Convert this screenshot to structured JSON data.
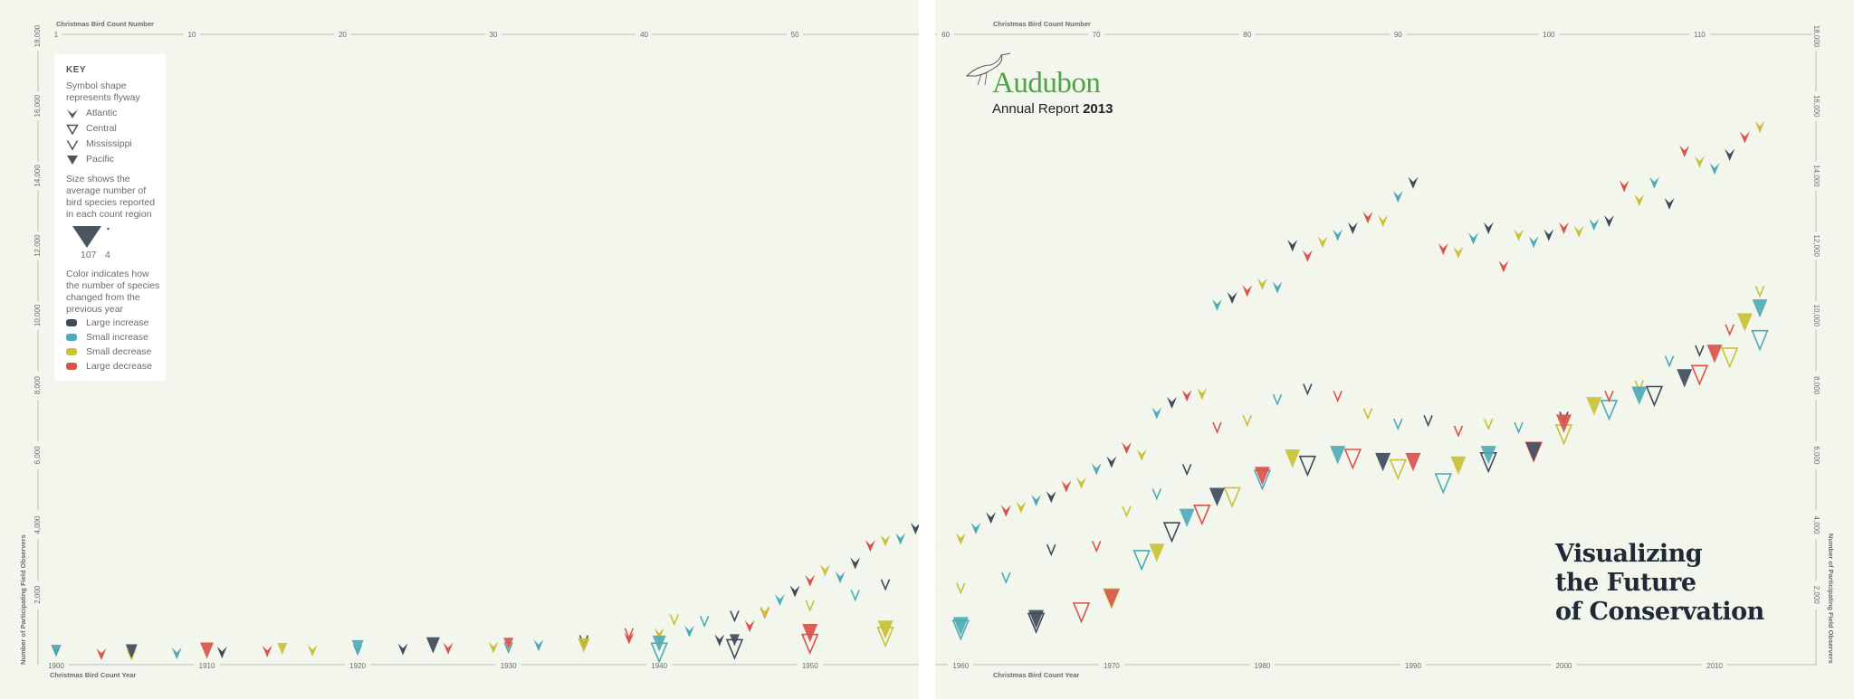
{
  "chart_data": {
    "type": "scatter",
    "top_axis_title": "Christmas Bird Count Number",
    "bottom_axis_title": "Christmas Bird Count Year",
    "y_axis_title": "Number of Participating Field Observers",
    "count_ticks": [
      1,
      10,
      20,
      30,
      40,
      50,
      60,
      70,
      80,
      90,
      100,
      110
    ],
    "year_ticks": [
      1900,
      1910,
      1920,
      1930,
      1940,
      1950,
      1960,
      1970,
      1980,
      1990,
      2000,
      2010
    ],
    "y_ticks": [
      2000,
      4000,
      6000,
      8000,
      10000,
      12000,
      14000,
      16000,
      18000
    ],
    "y_tick_labels": [
      "2,000",
      "4,000",
      "6,000",
      "8,000",
      "10,000",
      "12,000",
      "14,000",
      "16,000",
      "18,000"
    ],
    "xlim": [
      1900,
      2013
    ],
    "ylim": [
      0,
      18000
    ],
    "series": [
      {
        "name": "Atlantic",
        "size_note": "medium",
        "points": [
          {
            "x": 1900,
            "y": 400
          },
          {
            "x": 1903,
            "y": 300
          },
          {
            "x": 1905,
            "y": 280
          },
          {
            "x": 1908,
            "y": 320
          },
          {
            "x": 1911,
            "y": 350
          },
          {
            "x": 1914,
            "y": 380
          },
          {
            "x": 1917,
            "y": 400
          },
          {
            "x": 1920,
            "y": 420
          },
          {
            "x": 1923,
            "y": 440
          },
          {
            "x": 1926,
            "y": 460
          },
          {
            "x": 1929,
            "y": 490
          },
          {
            "x": 1932,
            "y": 550
          },
          {
            "x": 1935,
            "y": 600
          },
          {
            "x": 1938,
            "y": 750
          },
          {
            "x": 1940,
            "y": 880
          },
          {
            "x": 1942,
            "y": 950
          },
          {
            "x": 1944,
            "y": 700
          },
          {
            "x": 1946,
            "y": 1100
          },
          {
            "x": 1947,
            "y": 1500
          },
          {
            "x": 1948,
            "y": 1850
          },
          {
            "x": 1949,
            "y": 2100
          },
          {
            "x": 1950,
            "y": 2400
          },
          {
            "x": 1951,
            "y": 2700
          },
          {
            "x": 1952,
            "y": 2500
          },
          {
            "x": 1953,
            "y": 2900
          },
          {
            "x": 1954,
            "y": 3400
          },
          {
            "x": 1955,
            "y": 3550
          },
          {
            "x": 1956,
            "y": 3600
          },
          {
            "x": 1957,
            "y": 3900
          },
          {
            "x": 1958,
            "y": 3300
          },
          {
            "x": 1960,
            "y": 3600
          },
          {
            "x": 1961,
            "y": 3900
          },
          {
            "x": 1962,
            "y": 4200
          },
          {
            "x": 1963,
            "y": 4400
          },
          {
            "x": 1964,
            "y": 4500
          },
          {
            "x": 1965,
            "y": 4700
          },
          {
            "x": 1966,
            "y": 4800
          },
          {
            "x": 1967,
            "y": 5100
          },
          {
            "x": 1968,
            "y": 5200
          },
          {
            "x": 1969,
            "y": 5600
          },
          {
            "x": 1970,
            "y": 5800
          },
          {
            "x": 1971,
            "y": 6200
          },
          {
            "x": 1972,
            "y": 6000
          },
          {
            "x": 1973,
            "y": 7200
          },
          {
            "x": 1974,
            "y": 7500
          },
          {
            "x": 1975,
            "y": 7700
          },
          {
            "x": 1976,
            "y": 7750
          },
          {
            "x": 1977,
            "y": 10300
          },
          {
            "x": 1978,
            "y": 10500
          },
          {
            "x": 1979,
            "y": 10700
          },
          {
            "x": 1980,
            "y": 10900
          },
          {
            "x": 1981,
            "y": 10800
          },
          {
            "x": 1982,
            "y": 12000
          },
          {
            "x": 1983,
            "y": 11700
          },
          {
            "x": 1984,
            "y": 12100
          },
          {
            "x": 1985,
            "y": 12300
          },
          {
            "x": 1986,
            "y": 12500
          },
          {
            "x": 1987,
            "y": 12800
          },
          {
            "x": 1988,
            "y": 12700
          },
          {
            "x": 1989,
            "y": 13400
          },
          {
            "x": 1990,
            "y": 13800
          },
          {
            "x": 1992,
            "y": 11900
          },
          {
            "x": 1993,
            "y": 11800
          },
          {
            "x": 1994,
            "y": 12200
          },
          {
            "x": 1995,
            "y": 12500
          },
          {
            "x": 1996,
            "y": 11400
          },
          {
            "x": 1997,
            "y": 12300
          },
          {
            "x": 1998,
            "y": 12100
          },
          {
            "x": 1999,
            "y": 12300
          },
          {
            "x": 2000,
            "y": 12500
          },
          {
            "x": 2001,
            "y": 12400
          },
          {
            "x": 2002,
            "y": 12600
          },
          {
            "x": 2003,
            "y": 12700
          },
          {
            "x": 2004,
            "y": 13700
          },
          {
            "x": 2005,
            "y": 13300
          },
          {
            "x": 2006,
            "y": 13800
          },
          {
            "x": 2007,
            "y": 13200
          },
          {
            "x": 2008,
            "y": 14700
          },
          {
            "x": 2009,
            "y": 14400
          },
          {
            "x": 2010,
            "y": 14200
          },
          {
            "x": 2011,
            "y": 14600
          },
          {
            "x": 2012,
            "y": 15100
          },
          {
            "x": 2013,
            "y": 15400
          }
        ]
      },
      {
        "name": "Pacific",
        "size_note": "large",
        "points": [
          {
            "x": 1900,
            "y": 400
          },
          {
            "x": 1905,
            "y": 380
          },
          {
            "x": 1910,
            "y": 400
          },
          {
            "x": 1915,
            "y": 450
          },
          {
            "x": 1920,
            "y": 500
          },
          {
            "x": 1925,
            "y": 550
          },
          {
            "x": 1930,
            "y": 600
          },
          {
            "x": 1935,
            "y": 550
          },
          {
            "x": 1940,
            "y": 600
          },
          {
            "x": 1945,
            "y": 700
          },
          {
            "x": 1950,
            "y": 900
          },
          {
            "x": 1955,
            "y": 1000
          },
          {
            "x": 1960,
            "y": 1100
          },
          {
            "x": 1965,
            "y": 1300
          },
          {
            "x": 1970,
            "y": 1900
          },
          {
            "x": 1973,
            "y": 3200
          },
          {
            "x": 1975,
            "y": 4200
          },
          {
            "x": 1977,
            "y": 4800
          },
          {
            "x": 1980,
            "y": 5400
          },
          {
            "x": 1982,
            "y": 5900
          },
          {
            "x": 1985,
            "y": 6000
          },
          {
            "x": 1988,
            "y": 5800
          },
          {
            "x": 1990,
            "y": 5800
          },
          {
            "x": 1993,
            "y": 5700
          },
          {
            "x": 1995,
            "y": 6000
          },
          {
            "x": 1998,
            "y": 6100
          },
          {
            "x": 2000,
            "y": 6900
          },
          {
            "x": 2002,
            "y": 7400
          },
          {
            "x": 2005,
            "y": 7700
          },
          {
            "x": 2008,
            "y": 8200
          },
          {
            "x": 2010,
            "y": 8900
          },
          {
            "x": 2012,
            "y": 9800
          },
          {
            "x": 2013,
            "y": 10200
          }
        ]
      },
      {
        "name": "Mississippi",
        "size_note": "small",
        "points": [
          {
            "x": 1930,
            "y": 500
          },
          {
            "x": 1935,
            "y": 700
          },
          {
            "x": 1938,
            "y": 900
          },
          {
            "x": 1941,
            "y": 1300
          },
          {
            "x": 1943,
            "y": 1250
          },
          {
            "x": 1945,
            "y": 1400
          },
          {
            "x": 1947,
            "y": 1500
          },
          {
            "x": 1950,
            "y": 1700
          },
          {
            "x": 1953,
            "y": 2000
          },
          {
            "x": 1955,
            "y": 2300
          },
          {
            "x": 1958,
            "y": 2000
          },
          {
            "x": 1960,
            "y": 2200
          },
          {
            "x": 1963,
            "y": 2500
          },
          {
            "x": 1966,
            "y": 3300
          },
          {
            "x": 1969,
            "y": 3400
          },
          {
            "x": 1971,
            "y": 4400
          },
          {
            "x": 1973,
            "y": 4900
          },
          {
            "x": 1975,
            "y": 5600
          },
          {
            "x": 1977,
            "y": 6800
          },
          {
            "x": 1979,
            "y": 7000
          },
          {
            "x": 1981,
            "y": 7600
          },
          {
            "x": 1983,
            "y": 7900
          },
          {
            "x": 1985,
            "y": 7700
          },
          {
            "x": 1987,
            "y": 7200
          },
          {
            "x": 1989,
            "y": 6900
          },
          {
            "x": 1991,
            "y": 7000
          },
          {
            "x": 1993,
            "y": 6700
          },
          {
            "x": 1995,
            "y": 6900
          },
          {
            "x": 1997,
            "y": 6800
          },
          {
            "x": 2000,
            "y": 7100
          },
          {
            "x": 2003,
            "y": 7700
          },
          {
            "x": 2005,
            "y": 8000
          },
          {
            "x": 2007,
            "y": 8700
          },
          {
            "x": 2009,
            "y": 9000
          },
          {
            "x": 2011,
            "y": 9600
          },
          {
            "x": 2013,
            "y": 10700
          }
        ]
      },
      {
        "name": "Central",
        "size_note": "large",
        "points": [
          {
            "x": 1940,
            "y": 350
          },
          {
            "x": 1945,
            "y": 450
          },
          {
            "x": 1950,
            "y": 600
          },
          {
            "x": 1955,
            "y": 800
          },
          {
            "x": 1960,
            "y": 1000
          },
          {
            "x": 1965,
            "y": 1200
          },
          {
            "x": 1968,
            "y": 1500
          },
          {
            "x": 1970,
            "y": 1900
          },
          {
            "x": 1972,
            "y": 3000
          },
          {
            "x": 1974,
            "y": 3800
          },
          {
            "x": 1976,
            "y": 4300
          },
          {
            "x": 1978,
            "y": 4800
          },
          {
            "x": 1980,
            "y": 5300
          },
          {
            "x": 1983,
            "y": 5700
          },
          {
            "x": 1986,
            "y": 5900
          },
          {
            "x": 1989,
            "y": 5600
          },
          {
            "x": 1992,
            "y": 5200
          },
          {
            "x": 1995,
            "y": 5800
          },
          {
            "x": 1998,
            "y": 6100
          },
          {
            "x": 2000,
            "y": 6600
          },
          {
            "x": 2003,
            "y": 7300
          },
          {
            "x": 2006,
            "y": 7700
          },
          {
            "x": 2009,
            "y": 8300
          },
          {
            "x": 2011,
            "y": 8800
          },
          {
            "x": 2013,
            "y": 9300
          }
        ]
      }
    ]
  },
  "key": {
    "title": "KEY",
    "shape_text": "Symbol shape represents flyway",
    "flyways": [
      "Atlantic",
      "Central",
      "Mississippi",
      "Pacific"
    ],
    "size_text": "Size shows the average number of bird species reported in each count region",
    "size_large": "107",
    "size_small": "4",
    "color_text": "Color indicates how the number of species changed from the previous year",
    "colors": [
      {
        "label": "Large increase",
        "hex": "#3f4b5a"
      },
      {
        "label": "Small increase",
        "hex": "#4eaab7"
      },
      {
        "label": "Small decrease",
        "hex": "#c9c136"
      },
      {
        "label": "Large decrease",
        "hex": "#d9534a"
      }
    ]
  },
  "logo": {
    "wordmark": "Audubon",
    "report_text": "Annual Report",
    "report_year": "2013"
  },
  "headline": [
    "Visualizing",
    "the Future",
    "of Conservation"
  ],
  "style": {
    "background": "#f2f6ed",
    "axis_color": "#b9beb6",
    "text_color": "#6b6b6b"
  }
}
